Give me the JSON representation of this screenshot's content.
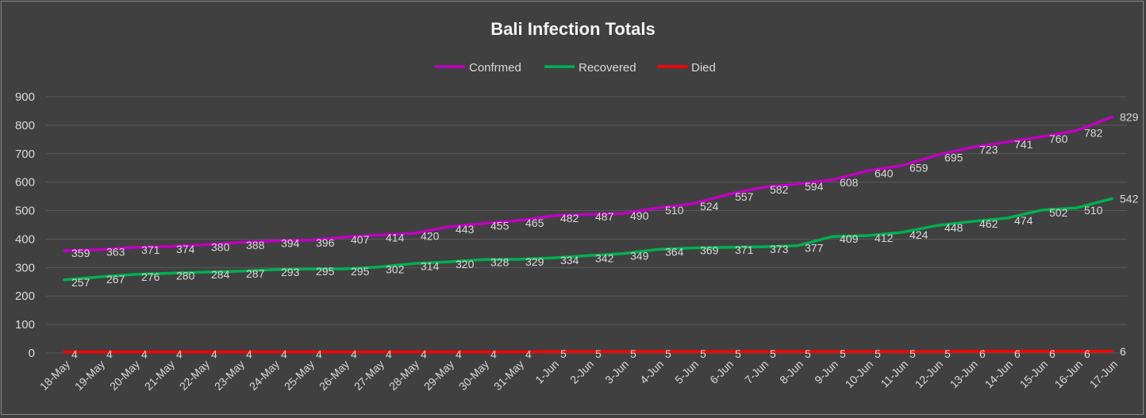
{
  "chart_data": {
    "type": "line",
    "title": "Bali Infection Totals",
    "xlabel": "",
    "ylabel": "",
    "ylim": [
      0,
      900
    ],
    "yticks": [
      0,
      100,
      200,
      300,
      400,
      500,
      600,
      700,
      800,
      900
    ],
    "grid": true,
    "legend_position": "top",
    "categories": [
      "18-May",
      "19-May",
      "20-May",
      "21-May",
      "22-May",
      "23-May",
      "24-May",
      "25-May",
      "26-May",
      "27-May",
      "28-May",
      "29-May",
      "30-May",
      "31-May",
      "1-Jun",
      "2-Jun",
      "3-Jun",
      "4-Jun",
      "5-Jun",
      "6-Jun",
      "7-Jun",
      "8-Jun",
      "9-Jun",
      "10-Jun",
      "11-Jun",
      "12-Jun",
      "13-Jun",
      "14-Jun",
      "15-Jun",
      "16-Jun",
      "17-Jun"
    ],
    "series": [
      {
        "name": "Confrmed",
        "color": "#c000c0",
        "values": [
          359,
          363,
          371,
          374,
          380,
          388,
          394,
          396,
          407,
          414,
          420,
          443,
          455,
          465,
          482,
          487,
          490,
          510,
          524,
          557,
          582,
          594,
          608,
          640,
          659,
          695,
          723,
          741,
          760,
          782,
          829
        ]
      },
      {
        "name": "Recovered",
        "color": "#00b050",
        "values": [
          257,
          267,
          276,
          280,
          284,
          287,
          293,
          295,
          295,
          302,
          314,
          320,
          328,
          329,
          334,
          342,
          349,
          364,
          369,
          371,
          373,
          377,
          409,
          412,
          424,
          448,
          462,
          474,
          502,
          510,
          542
        ]
      },
      {
        "name": "Died",
        "color": "#ff0000",
        "values": [
          4,
          4,
          4,
          4,
          4,
          4,
          4,
          4,
          4,
          4,
          4,
          4,
          4,
          4,
          5,
          5,
          5,
          5,
          5,
          5,
          5,
          5,
          5,
          5,
          5,
          5,
          6,
          6,
          6,
          6,
          6
        ]
      }
    ]
  }
}
